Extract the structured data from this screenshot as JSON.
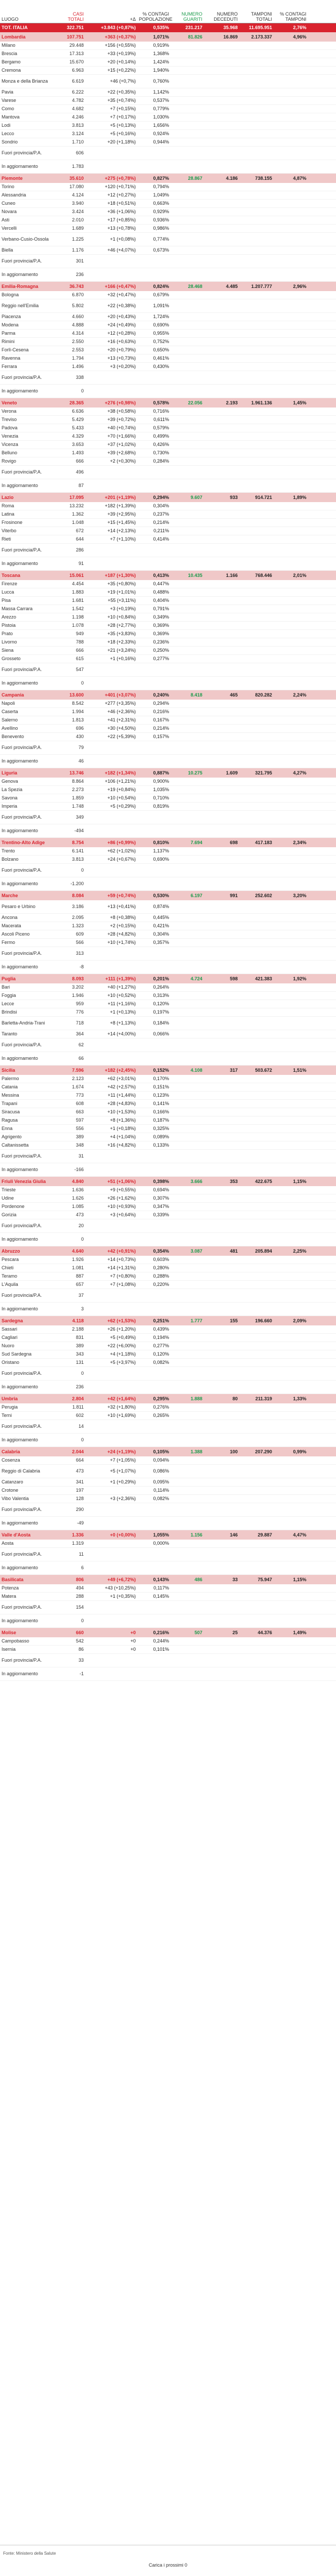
{
  "headers": [
    {
      "text": "LUOGO",
      "cls": "l"
    },
    {
      "text": "CASI TOTALI",
      "cls": "red"
    },
    {
      "text": "+Δ",
      "cls": ""
    },
    {
      "text": "% CONTAGI POPOLAZIONE",
      "cls": ""
    },
    {
      "text": "NUMERO GUARITI",
      "cls": "green"
    },
    {
      "text": "NUMERO DECEDUTI",
      "cls": ""
    },
    {
      "text": "TAMPONI TOTALI",
      "cls": ""
    },
    {
      "text": "% CONTAGI TAMPONI",
      "cls": ""
    }
  ],
  "rows": [
    [
      "tot",
      "TOT. ITALIA",
      "322.751",
      "+3.843 (+0,87%)",
      "0,535%",
      "231.217",
      "35.968",
      "11.695.951",
      "2,76%"
    ],
    [
      "reg",
      "Lombardia",
      "107.751",
      "+363 (+0,37%)",
      "1,071%",
      "81.826",
      "16.869",
      "2.173.337",
      "4,96%"
    ],
    [
      "pr",
      "Milano",
      "29.448",
      "+156 (+0,55%)",
      "0,919%"
    ],
    [
      "pr",
      "Brescia",
      "17.313",
      "+33 (+0,19%)",
      "1,368%"
    ],
    [
      "pr",
      "Bergamo",
      "15.670",
      "+20 (+0,14%)",
      "1,424%"
    ],
    [
      "pr",
      "Cremona",
      "6.963",
      "+15 (+0,22%)",
      "1,940%"
    ],
    [
      "pr",
      "Monza e della Brianza",
      "6.619",
      "+46 (+0,7%)",
      "0,760%",
      "tall"
    ],
    [
      "pr",
      "Pavia",
      "6.222",
      "+22 (+0,35%)",
      "1,142%"
    ],
    [
      "pr",
      "Varese",
      "4.782",
      "+35 (+0,74%)",
      "0,537%"
    ],
    [
      "pr",
      "Como",
      "4.682",
      "+7 (+0,15%)",
      "0,779%"
    ],
    [
      "pr",
      "Mantova",
      "4.246",
      "+7 (+0,17%)",
      "1,030%"
    ],
    [
      "pr",
      "Lodi",
      "3.813",
      "+5 (+0,13%)",
      "1,656%"
    ],
    [
      "pr",
      "Lecco",
      "3.124",
      "+5 (+0,16%)",
      "0,924%"
    ],
    [
      "pr",
      "Sondrio",
      "1.710",
      "+20 (+1,18%)",
      "0,944%"
    ],
    [
      "pr",
      "Fuori provincia/P.A.",
      "606",
      "",
      "",
      "tall"
    ],
    [
      "pr",
      "In aggiornamento",
      "1.783",
      "",
      "",
      "tall"
    ],
    [
      "reg",
      "Piemonte",
      "35.610",
      "+275 (+0,78%)",
      "0,827%",
      "28.867",
      "4.186",
      "738.155",
      "4,87%"
    ],
    [
      "pr",
      "Torino",
      "17.080",
      "+120 (+0,71%)",
      "0,794%"
    ],
    [
      "pr",
      "Alessandria",
      "4.124",
      "+12 (+0,27%)",
      "1,049%"
    ],
    [
      "pr",
      "Cuneo",
      "3.940",
      "+18 (+0,51%)",
      "0,663%"
    ],
    [
      "pr",
      "Novara",
      "3.424",
      "+36 (+1,06%)",
      "0,929%"
    ],
    [
      "pr",
      "Asti",
      "2.010",
      "+17 (+0,85%)",
      "0,936%"
    ],
    [
      "pr",
      "Vercelli",
      "1.689",
      "+13 (+0,78%)",
      "0,986%"
    ],
    [
      "pr",
      "Verbano-Cusio-Ossola",
      "1.225",
      "+1 (+0,08%)",
      "0,774%",
      "tall"
    ],
    [
      "pr",
      "Biella",
      "1.176",
      "+46 (+4,07%)",
      "0,673%"
    ],
    [
      "pr",
      "Fuori provincia/P.A.",
      "301",
      "",
      "",
      "tall"
    ],
    [
      "pr",
      "In aggiornamento",
      "236",
      "",
      "",
      "tall"
    ],
    [
      "reg",
      "Emilia-Romagna",
      "36.743",
      "+166 (+0,47%)",
      "0,824%",
      "28.468",
      "4.485",
      "1.207.777",
      "2,96%"
    ],
    [
      "pr",
      "Bologna",
      "6.870",
      "+32 (+0,47%)",
      "0,679%"
    ],
    [
      "pr",
      "Reggio nell'Emilia",
      "5.802",
      "+22 (+0,38%)",
      "1,091%",
      "tall"
    ],
    [
      "pr",
      "Piacenza",
      "4.660",
      "+20 (+0,43%)",
      "1,724%"
    ],
    [
      "pr",
      "Modena",
      "4.888",
      "+24 (+0,49%)",
      "0,690%"
    ],
    [
      "pr",
      "Parma",
      "4.314",
      "+12 (+0,28%)",
      "0,955%"
    ],
    [
      "pr",
      "Rimini",
      "2.550",
      "+16 (+0,63%)",
      "0,752%"
    ],
    [
      "pr",
      "Forlì-Cesena",
      "2.553",
      "+20 (+0,79%)",
      "0,650%"
    ],
    [
      "pr",
      "Ravenna",
      "1.794",
      "+13 (+0,73%)",
      "0,461%"
    ],
    [
      "pr",
      "Ferrara",
      "1.496",
      "+3 (+0,20%)",
      "0,430%"
    ],
    [
      "pr",
      "Fuori provincia/P.A.",
      "338",
      "",
      "",
      "tall"
    ],
    [
      "pr",
      "In aggiornamento",
      "0",
      "",
      "",
      "tall"
    ],
    [
      "reg",
      "Veneto",
      "28.365",
      "+276 (+0,98%)",
      "0,578%",
      "22.056",
      "2.193",
      "1.961.136",
      "1,45%"
    ],
    [
      "pr",
      "Verona",
      "6.636",
      "+38 (+0,58%)",
      "0,716%"
    ],
    [
      "pr",
      "Treviso",
      "5.429",
      "+39 (+0,72%)",
      "0,611%"
    ],
    [
      "pr",
      "Padova",
      "5.433",
      "+40 (+0,74%)",
      "0,579%"
    ],
    [
      "pr",
      "Venezia",
      "4.329",
      "+70 (+1,66%)",
      "0,499%"
    ],
    [
      "pr",
      "Vicenza",
      "3.653",
      "+37 (+1,02%)",
      "0,426%"
    ],
    [
      "pr",
      "Belluno",
      "1.493",
      "+39 (+2,68%)",
      "0,730%"
    ],
    [
      "pr",
      "Rovigo",
      "666",
      "+2 (+0,30%)",
      "0,284%"
    ],
    [
      "pr",
      "Fuori provincia/P.A.",
      "496",
      "",
      "",
      "tall"
    ],
    [
      "pr",
      "In aggiornamento",
      "87",
      "",
      "",
      "tall"
    ],
    [
      "reg",
      "Lazio",
      "17.095",
      "+201 (+1,19%)",
      "0,294%",
      "9.607",
      "933",
      "914.721",
      "1,89%"
    ],
    [
      "pr",
      "Roma",
      "13.232",
      "+182 (+1,39%)",
      "0,304%"
    ],
    [
      "pr",
      "Latina",
      "1.362",
      "+39 (+2,95%)",
      "0,237%"
    ],
    [
      "pr",
      "Frosinone",
      "1.048",
      "+15 (+1,45%)",
      "0,214%"
    ],
    [
      "pr",
      "Viterbo",
      "672",
      "+14 (+2,13%)",
      "0,211%"
    ],
    [
      "pr",
      "Rieti",
      "644",
      "+7 (+1,10%)",
      "0,414%"
    ],
    [
      "pr",
      "Fuori provincia/P.A.",
      "286",
      "",
      "",
      "tall"
    ],
    [
      "pr",
      "In aggiornamento",
      "91",
      "",
      "",
      "tall"
    ],
    [
      "reg",
      "Toscana",
      "15.061",
      "+187 (+1,30%)",
      "0,413%",
      "10.435",
      "1.166",
      "768.446",
      "2,01%"
    ],
    [
      "pr",
      "Firenze",
      "4.454",
      "+35 (+0,80%)",
      "0,447%"
    ],
    [
      "pr",
      "Lucca",
      "1.883",
      "+19 (+1,01%)",
      "0,488%"
    ],
    [
      "pr",
      "Pisa",
      "1.681",
      "+55 (+3,11%)",
      "0,404%"
    ],
    [
      "pr",
      "Massa Carrara",
      "1.542",
      "+3 (+0,19%)",
      "0,791%"
    ],
    [
      "pr",
      "Arezzo",
      "1.198",
      "+10 (+0,84%)",
      "0,349%"
    ],
    [
      "pr",
      "Pistoia",
      "1.078",
      "+28 (+2,77%)",
      "0,369%"
    ],
    [
      "pr",
      "Prato",
      "949",
      "+35 (+3,83%)",
      "0,369%"
    ],
    [
      "pr",
      "Livorno",
      "788",
      "+18 (+2,33%)",
      "0,236%"
    ],
    [
      "pr",
      "Siena",
      "666",
      "+21 (+3,24%)",
      "0,250%"
    ],
    [
      "pr",
      "Grosseto",
      "615",
      "+1 (+0,16%)",
      "0,277%"
    ],
    [
      "pr",
      "Fuori provincia/P.A.",
      "547",
      "",
      "",
      "tall"
    ],
    [
      "pr",
      "In aggiornamento",
      "0",
      "",
      "",
      "tall"
    ],
    [
      "reg",
      "Campania",
      "13.600",
      "+401 (+3,07%)",
      "0,240%",
      "8.418",
      "465",
      "820.282",
      "2,24%"
    ],
    [
      "pr",
      "Napoli",
      "8.542",
      "+277 (+3,35%)",
      "0,294%"
    ],
    [
      "pr",
      "Caserta",
      "1.994",
      "+46 (+2,36%)",
      "0,216%"
    ],
    [
      "pr",
      "Salerno",
      "1.813",
      "+41 (+2,31%)",
      "0,167%"
    ],
    [
      "pr",
      "Avellino",
      "696",
      "+30 (+4,50%)",
      "0,214%"
    ],
    [
      "pr",
      "Benevento",
      "430",
      "+22 (+5,39%)",
      "0,157%"
    ],
    [
      "pr",
      "Fuori provincia/P.A.",
      "79",
      "",
      "",
      "tall"
    ],
    [
      "pr",
      "In aggiornamento",
      "46",
      "",
      "",
      "tall"
    ],
    [
      "reg",
      "Liguria",
      "13.746",
      "+182 (+1,34%)",
      "0,887%",
      "10.275",
      "1.609",
      "321.795",
      "4,27%"
    ],
    [
      "pr",
      "Genova",
      "8.864",
      "+106 (+1,21%)",
      "0,900%"
    ],
    [
      "pr",
      "La Spezia",
      "2.273",
      "+19 (+0,84%)",
      "1,035%"
    ],
    [
      "pr",
      "Savona",
      "1.859",
      "+10 (+0,54%)",
      "0,710%"
    ],
    [
      "pr",
      "Imperia",
      "1.748",
      "+5 (+0,29%)",
      "0,819%"
    ],
    [
      "pr",
      "Fuori provincia/P.A.",
      "349",
      "",
      "",
      "tall"
    ],
    [
      "pr",
      "In aggiornamento",
      "-494",
      "",
      "",
      "tall"
    ],
    [
      "reg",
      "Trentino-Alto Adige",
      "8.754",
      "+86 (+0,99%)",
      "0,810%",
      "7.694",
      "698",
      "417.183",
      "2,34%",
      "tall"
    ],
    [
      "pr",
      "Trento",
      "6.141",
      "+62 (+1,02%)",
      "1,137%"
    ],
    [
      "pr",
      "Bolzano",
      "3.813",
      "+24 (+0,67%)",
      "0,690%"
    ],
    [
      "pr",
      "Fuori provincia/P.A.",
      "0",
      "",
      "",
      "tall"
    ],
    [
      "pr",
      "In aggiornamento",
      "-1.200",
      "",
      "",
      "tall"
    ],
    [
      "reg",
      "Marche",
      "8.084",
      "+59 (+0,74%)",
      "0,530%",
      "6.197",
      "991",
      "252.602",
      "3,20%"
    ],
    [
      "pr",
      "Pesaro e Urbino",
      "3.186",
      "+13 (+0,41%)",
      "0,874%",
      "tall"
    ],
    [
      "pr",
      "Ancona",
      "2.095",
      "+8 (+0,38%)",
      "0,445%"
    ],
    [
      "pr",
      "Macerata",
      "1.323",
      "+2 (+0,15%)",
      "0,421%"
    ],
    [
      "pr",
      "Ascoli Piceno",
      "609",
      "+28 (+4,82%)",
      "0,304%"
    ],
    [
      "pr",
      "Fermo",
      "566",
      "+10 (+1,74%)",
      "0,357%"
    ],
    [
      "pr",
      "Fuori provincia/P.A.",
      "313",
      "",
      "",
      "tall"
    ],
    [
      "pr",
      "In aggiornamento",
      "-8",
      "",
      "",
      "tall"
    ],
    [
      "reg",
      "Puglia",
      "8.093",
      "+111 (+1,39%)",
      "0,201%",
      "4.724",
      "598",
      "421.383",
      "1,92%"
    ],
    [
      "pr",
      "Bari",
      "3.202",
      "+40 (+1,27%)",
      "0,264%"
    ],
    [
      "pr",
      "Foggia",
      "1.946",
      "+10 (+0,52%)",
      "0,313%"
    ],
    [
      "pr",
      "Lecce",
      "959",
      "+11 (+1,16%)",
      "0,120%"
    ],
    [
      "pr",
      "Brindisi",
      "776",
      "+1 (+0,13%)",
      "0,197%"
    ],
    [
      "pr",
      "Barletta-Andria-Trani",
      "718",
      "+8 (+1,13%)",
      "0,184%",
      "tall"
    ],
    [
      "pr",
      "Taranto",
      "364",
      "+14 (+4,00%)",
      "0,066%"
    ],
    [
      "pr",
      "Fuori provincia/P.A.",
      "62",
      "",
      "",
      "tall"
    ],
    [
      "pr",
      "In aggiornamento",
      "66",
      "",
      "",
      "tall"
    ],
    [
      "reg",
      "Sicilia",
      "7.596",
      "+182 (+2,45%)",
      "0,152%",
      "4.108",
      "317",
      "503.672",
      "1,51%"
    ],
    [
      "pr",
      "Palermo",
      "2.123",
      "+62 (+3,01%)",
      "0,170%"
    ],
    [
      "pr",
      "Catania",
      "1.674",
      "+42 (+2,57%)",
      "0,151%"
    ],
    [
      "pr",
      "Messina",
      "773",
      "+11 (+1,44%)",
      "0,123%"
    ],
    [
      "pr",
      "Trapani",
      "608",
      "+28 (+4,83%)",
      "0,141%"
    ],
    [
      "pr",
      "Siracusa",
      "663",
      "+10 (+1,53%)",
      "0,166%"
    ],
    [
      "pr",
      "Ragusa",
      "597",
      "+8 (+1,36%)",
      "0,187%"
    ],
    [
      "pr",
      "Enna",
      "556",
      "+1 (+0,18%)",
      "0,325%"
    ],
    [
      "pr",
      "Agrigento",
      "389",
      "+4 (+1,04%)",
      "0,089%"
    ],
    [
      "pr",
      "Caltanissetta",
      "348",
      "+16 (+4,82%)",
      "0,133%"
    ],
    [
      "pr",
      "Fuori provincia/P.A.",
      "31",
      "",
      "",
      "tall"
    ],
    [
      "pr",
      "In aggiornamento",
      "-166",
      "",
      "",
      "tall"
    ],
    [
      "reg",
      "Friuli Venezia Giulia",
      "4.840",
      "+51 (+1,06%)",
      "0,398%",
      "3.666",
      "353",
      "422.675",
      "1,15%",
      "tall"
    ],
    [
      "pr",
      "Trieste",
      "1.636",
      "+9 (+0,55%)",
      "0,694%"
    ],
    [
      "pr",
      "Udine",
      "1.626",
      "+26 (+1,62%)",
      "0,307%"
    ],
    [
      "pr",
      "Pordenone",
      "1.085",
      "+10 (+0,93%)",
      "0,347%"
    ],
    [
      "pr",
      "Gorizia",
      "473",
      "+3 (+0,64%)",
      "0,339%"
    ],
    [
      "pr",
      "Fuori provincia/P.A.",
      "20",
      "",
      "",
      "tall"
    ],
    [
      "pr",
      "In aggiornamento",
      "0",
      "",
      "",
      "tall"
    ],
    [
      "reg",
      "Abruzzo",
      "4.640",
      "+42 (+0,91%)",
      "0,354%",
      "3.087",
      "481",
      "205.894",
      "2,25%"
    ],
    [
      "pr",
      "Pescara",
      "1.926",
      "+14 (+0,73%)",
      "0,603%"
    ],
    [
      "pr",
      "Chieti",
      "1.081",
      "+14 (+1,31%)",
      "0,280%"
    ],
    [
      "pr",
      "Teramo",
      "887",
      "+7 (+0,80%)",
      "0,288%"
    ],
    [
      "pr",
      "L'Aquila",
      "657",
      "+7 (+1,08%)",
      "0,220%"
    ],
    [
      "pr",
      "Fuori provincia/P.A.",
      "37",
      "",
      "",
      "tall"
    ],
    [
      "pr",
      "In aggiornamento",
      "3",
      "",
      "",
      "tall"
    ],
    [
      "reg",
      "Sardegna",
      "4.118",
      "+62 (+1,53%)",
      "0,251%",
      "1.777",
      "155",
      "196.660",
      "2,09%"
    ],
    [
      "pr",
      "Sassari",
      "2.188",
      "+26 (+1,20%)",
      "0,439%"
    ],
    [
      "pr",
      "Cagliari",
      "831",
      "+5 (+0,49%)",
      "0,194%"
    ],
    [
      "pr",
      "Nuoro",
      "389",
      "+22 (+6,00%)",
      "0,277%"
    ],
    [
      "pr",
      "Sud Sardegna",
      "343",
      "+4 (+1,18%)",
      "0,120%"
    ],
    [
      "pr",
      "Oristano",
      "131",
      "+5 (+3,97%)",
      "0,082%"
    ],
    [
      "pr",
      "Fuori provincia/P.A.",
      "0",
      "",
      "",
      "tall"
    ],
    [
      "pr",
      "In aggiornamento",
      "236",
      "",
      "",
      "tall"
    ],
    [
      "reg",
      "Umbria",
      "2.804",
      "+42 (+1,64%)",
      "0,295%",
      "1.888",
      "80",
      "211.319",
      "1,33%"
    ],
    [
      "pr",
      "Perugia",
      "1.811",
      "+32 (+1,80%)",
      "0,276%"
    ],
    [
      "pr",
      "Terni",
      "602",
      "+10 (+1,69%)",
      "0,265%"
    ],
    [
      "pr",
      "Fuori provincia/P.A.",
      "14",
      "",
      "",
      "tall"
    ],
    [
      "pr",
      "In aggiornamento",
      "0",
      "",
      "",
      "tall"
    ],
    [
      "reg",
      "Calabria",
      "2.044",
      "+24 (+1,19%)",
      "0,105%",
      "1.388",
      "100",
      "207.290",
      "0,99%"
    ],
    [
      "pr",
      "Cosenza",
      "664",
      "+7 (+1,05%)",
      "0,094%"
    ],
    [
      "pr",
      "Reggio di Calabria",
      "473",
      "+5 (+1,07%)",
      "0,086%",
      "tall"
    ],
    [
      "pr",
      "Catanzaro",
      "341",
      "+1 (+0,29%)",
      "0,095%"
    ],
    [
      "pr",
      "Crotone",
      "197",
      "",
      "0,114%"
    ],
    [
      "pr",
      "Vibo Valentia",
      "128",
      "+3 (+2,36%)",
      "0,082%"
    ],
    [
      "pr",
      "Fuori provincia/P.A.",
      "290",
      "",
      "",
      "tall"
    ],
    [
      "pr",
      "In aggiornamento",
      "-49",
      "",
      "",
      "tall"
    ],
    [
      "reg",
      "Valle d'Aosta",
      "1.336",
      "+0 (+0,00%)",
      "1,055%",
      "1.156",
      "146",
      "29.887",
      "4,47%"
    ],
    [
      "pr",
      "Aosta",
      "1.319",
      "",
      "0,000%"
    ],
    [
      "pr",
      "Fuori provincia/P.A.",
      "11",
      "",
      "",
      "tall"
    ],
    [
      "pr",
      "In aggiornamento",
      "6",
      "",
      "",
      "tall"
    ],
    [
      "reg",
      "Basilicata",
      "806",
      "+49 (+6,72%)",
      "0,143%",
      "486",
      "33",
      "75.947",
      "1,15%"
    ],
    [
      "pr",
      "Potenza",
      "494",
      "+43 (+10,25%)",
      "0,117%"
    ],
    [
      "pr",
      "Matera",
      "288",
      "+1 (+0,35%)",
      "0,145%"
    ],
    [
      "pr",
      "Fuori provincia/P.A.",
      "154",
      "",
      "",
      "tall"
    ],
    [
      "pr",
      "In aggiornamento",
      "0",
      "",
      "",
      "tall"
    ],
    [
      "reg",
      "Molise",
      "660",
      "+0",
      "0,216%",
      "507",
      "25",
      "44.376",
      "1,49%"
    ],
    [
      "pr",
      "Campobasso",
      "542",
      "+0",
      "0,244%"
    ],
    [
      "pr",
      "Isernia",
      "86",
      "+0",
      "0,101%"
    ],
    [
      "pr",
      "Fuori provincia/P.A.",
      "33",
      "",
      "",
      "tall"
    ],
    [
      "pr",
      "In aggiornamento",
      "-1",
      "",
      "",
      "tall"
    ]
  ],
  "footer": {
    "legend": "Fonte: Ministero della Salute",
    "load_more": "Carica i prossimi 0"
  }
}
